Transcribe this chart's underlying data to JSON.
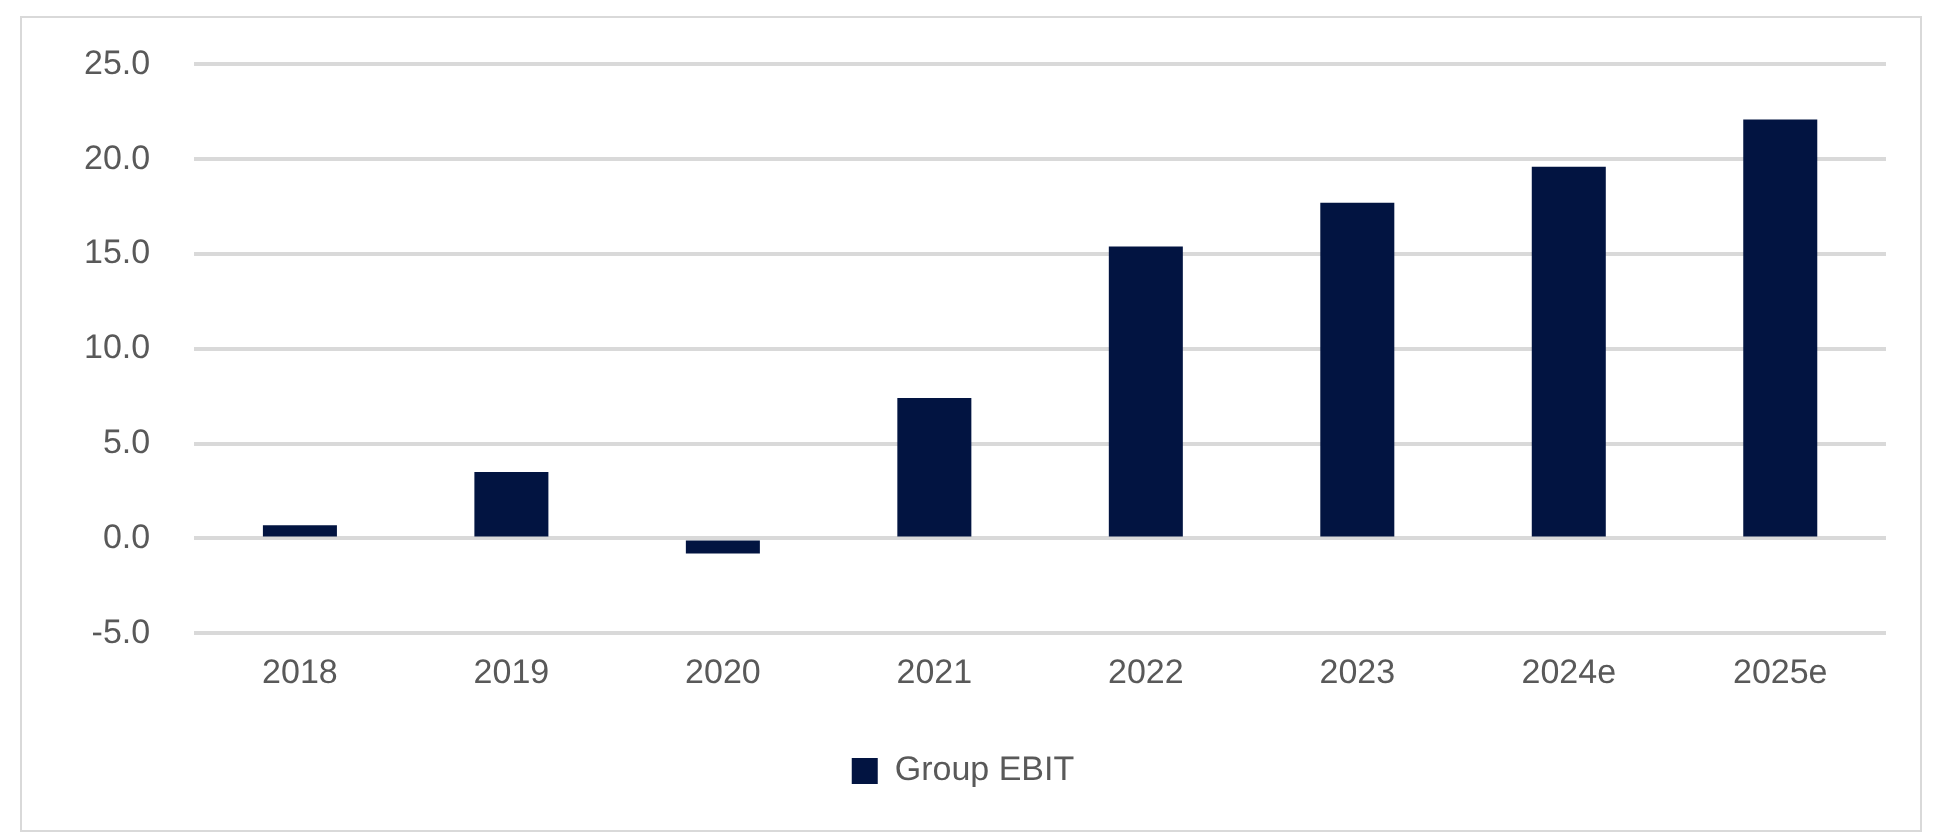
{
  "chart_data": {
    "type": "bar",
    "categories": [
      "2018",
      "2019",
      "2020",
      "2021",
      "2022",
      "2023",
      "2024e",
      "2025e"
    ],
    "series": [
      {
        "name": "Group EBIT",
        "color": "#021441",
        "values": [
          0.7,
          3.5,
          -0.8,
          7.4,
          15.4,
          17.7,
          19.6,
          22.1
        ]
      }
    ],
    "ylim": [
      -5,
      25
    ],
    "yticks": [
      {
        "value": -5,
        "label": "-5.0"
      },
      {
        "value": 0,
        "label": "0.0"
      },
      {
        "value": 5,
        "label": "5.0"
      },
      {
        "value": 10,
        "label": "10.0"
      },
      {
        "value": 15,
        "label": "15.0"
      },
      {
        "value": 20,
        "label": "20.0"
      },
      {
        "value": 25,
        "label": "25.0"
      }
    ],
    "grid": "y",
    "legend": "bottom"
  }
}
